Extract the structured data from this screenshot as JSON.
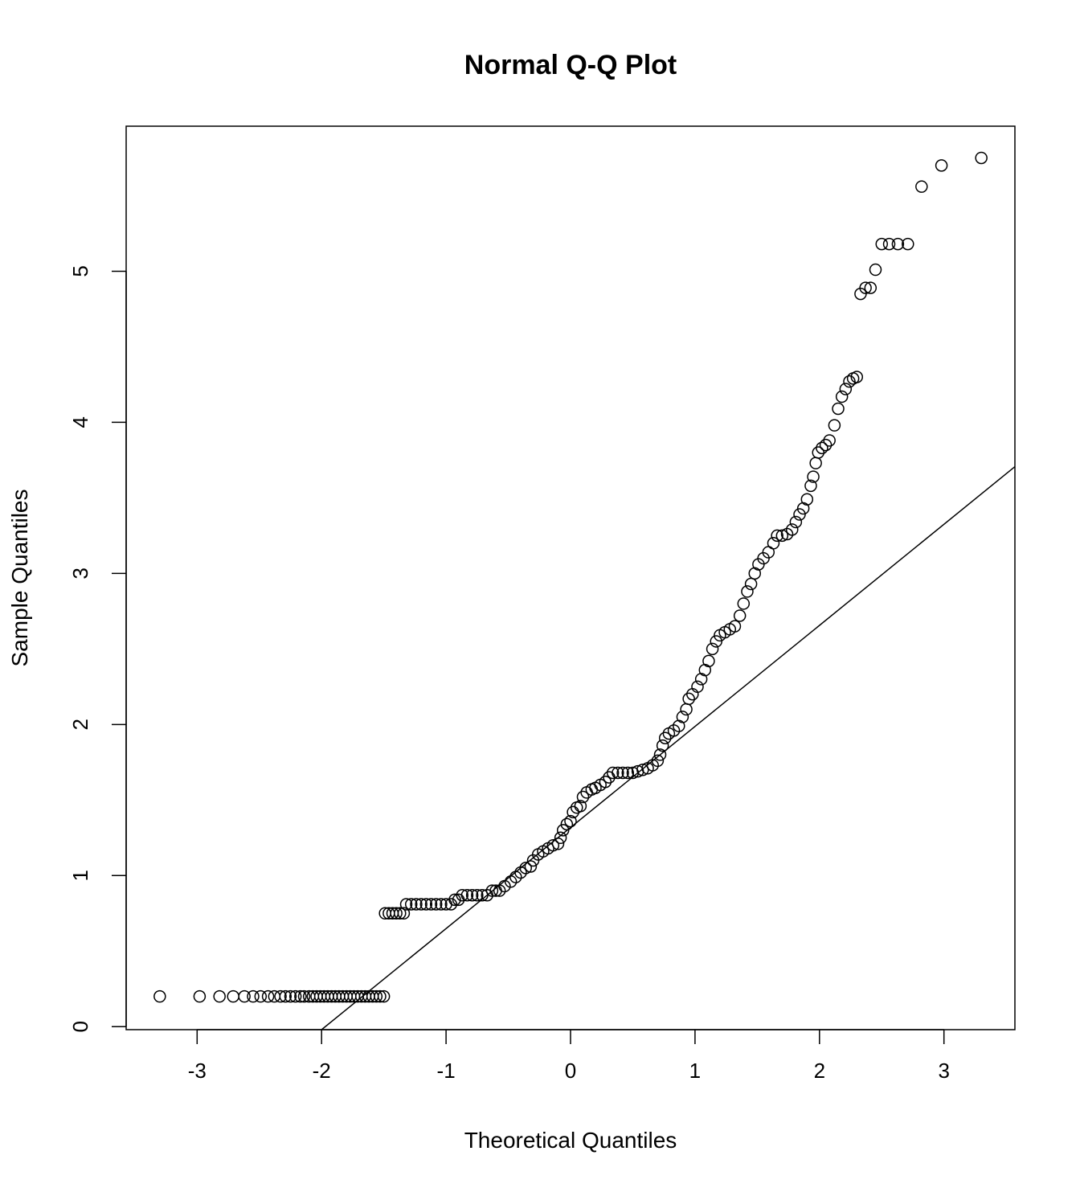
{
  "chart_data": {
    "type": "scatter",
    "title": "Normal Q-Q Plot",
    "xlabel": "Theoretical Quantiles",
    "ylabel": "Sample Quantiles",
    "xlim": [
      -3.57,
      3.57
    ],
    "ylim": [
      -0.02,
      5.96
    ],
    "x_ticks": [
      "-3",
      "-2",
      "-1",
      "0",
      "1",
      "2",
      "3"
    ],
    "y_ticks": [
      "0",
      "1",
      "2",
      "3",
      "4",
      "5"
    ],
    "grid": false,
    "marker": "open-circle",
    "reference_line": {
      "intercept": 1.318,
      "slope": 0.669
    },
    "points": [
      [
        -3.3,
        0.2
      ],
      [
        -2.98,
        0.2
      ],
      [
        -2.82,
        0.2
      ],
      [
        -2.71,
        0.2
      ],
      [
        -2.62,
        0.2
      ],
      [
        -2.55,
        0.2
      ],
      [
        -2.49,
        0.2
      ],
      [
        -2.43,
        0.2
      ],
      [
        -2.38,
        0.2
      ],
      [
        -2.33,
        0.2
      ],
      [
        -2.29,
        0.2
      ],
      [
        -2.25,
        0.2
      ],
      [
        -2.21,
        0.2
      ],
      [
        -2.17,
        0.2
      ],
      [
        -2.14,
        0.2
      ],
      [
        -2.1,
        0.2
      ],
      [
        -2.07,
        0.2
      ],
      [
        -2.04,
        0.2
      ],
      [
        -2.01,
        0.2
      ],
      [
        -1.98,
        0.2
      ],
      [
        -1.95,
        0.2
      ],
      [
        -1.92,
        0.2
      ],
      [
        -1.89,
        0.2
      ],
      [
        -1.86,
        0.2
      ],
      [
        -1.83,
        0.2
      ],
      [
        -1.8,
        0.2
      ],
      [
        -1.77,
        0.2
      ],
      [
        -1.74,
        0.2
      ],
      [
        -1.71,
        0.2
      ],
      [
        -1.68,
        0.2
      ],
      [
        -1.65,
        0.2
      ],
      [
        -1.62,
        0.2
      ],
      [
        -1.59,
        0.2
      ],
      [
        -1.56,
        0.2
      ],
      [
        -1.53,
        0.2
      ],
      [
        -1.5,
        0.2
      ],
      [
        -1.49,
        0.75
      ],
      [
        -1.46,
        0.75
      ],
      [
        -1.43,
        0.75
      ],
      [
        -1.4,
        0.75
      ],
      [
        -1.37,
        0.75
      ],
      [
        -1.34,
        0.75
      ],
      [
        -1.32,
        0.81
      ],
      [
        -1.28,
        0.81
      ],
      [
        -1.24,
        0.81
      ],
      [
        -1.2,
        0.81
      ],
      [
        -1.16,
        0.81
      ],
      [
        -1.12,
        0.81
      ],
      [
        -1.08,
        0.81
      ],
      [
        -1.04,
        0.81
      ],
      [
        -1.0,
        0.81
      ],
      [
        -0.96,
        0.81
      ],
      [
        -0.93,
        0.84
      ],
      [
        -0.9,
        0.84
      ],
      [
        -0.87,
        0.87
      ],
      [
        -0.83,
        0.87
      ],
      [
        -0.79,
        0.87
      ],
      [
        -0.75,
        0.87
      ],
      [
        -0.71,
        0.87
      ],
      [
        -0.67,
        0.87
      ],
      [
        -0.63,
        0.9
      ],
      [
        -0.6,
        0.9
      ],
      [
        -0.57,
        0.9
      ],
      [
        -0.53,
        0.93
      ],
      [
        -0.48,
        0.96
      ],
      [
        -0.44,
        0.99
      ],
      [
        -0.4,
        1.02
      ],
      [
        -0.36,
        1.05
      ],
      [
        -0.32,
        1.06
      ],
      [
        -0.3,
        1.1
      ],
      [
        -0.26,
        1.14
      ],
      [
        -0.22,
        1.16
      ],
      [
        -0.18,
        1.18
      ],
      [
        -0.14,
        1.2
      ],
      [
        -0.1,
        1.21
      ],
      [
        -0.08,
        1.25
      ],
      [
        -0.06,
        1.3
      ],
      [
        -0.03,
        1.34
      ],
      [
        0,
        1.36
      ],
      [
        0.02,
        1.42
      ],
      [
        0.05,
        1.45
      ],
      [
        0.08,
        1.46
      ],
      [
        0.1,
        1.52
      ],
      [
        0.13,
        1.55
      ],
      [
        0.17,
        1.57
      ],
      [
        0.2,
        1.58
      ],
      [
        0.24,
        1.6
      ],
      [
        0.28,
        1.62
      ],
      [
        0.31,
        1.65
      ],
      [
        0.34,
        1.68
      ],
      [
        0.38,
        1.68
      ],
      [
        0.42,
        1.68
      ],
      [
        0.46,
        1.68
      ],
      [
        0.5,
        1.68
      ],
      [
        0.54,
        1.69
      ],
      [
        0.58,
        1.7
      ],
      [
        0.62,
        1.71
      ],
      [
        0.66,
        1.73
      ],
      [
        0.7,
        1.76
      ],
      [
        0.72,
        1.8
      ],
      [
        0.74,
        1.86
      ],
      [
        0.76,
        1.91
      ],
      [
        0.79,
        1.94
      ],
      [
        0.83,
        1.96
      ],
      [
        0.87,
        1.99
      ],
      [
        0.9,
        2.05
      ],
      [
        0.93,
        2.1
      ],
      [
        0.95,
        2.17
      ],
      [
        0.98,
        2.2
      ],
      [
        1.02,
        2.25
      ],
      [
        1.05,
        2.3
      ],
      [
        1.08,
        2.36
      ],
      [
        1.11,
        2.42
      ],
      [
        1.14,
        2.5
      ],
      [
        1.17,
        2.55
      ],
      [
        1.2,
        2.59
      ],
      [
        1.24,
        2.61
      ],
      [
        1.28,
        2.63
      ],
      [
        1.32,
        2.65
      ],
      [
        1.36,
        2.72
      ],
      [
        1.39,
        2.8
      ],
      [
        1.42,
        2.88
      ],
      [
        1.45,
        2.93
      ],
      [
        1.48,
        3.0
      ],
      [
        1.51,
        3.06
      ],
      [
        1.55,
        3.1
      ],
      [
        1.59,
        3.14
      ],
      [
        1.63,
        3.2
      ],
      [
        1.66,
        3.25
      ],
      [
        1.7,
        3.25
      ],
      [
        1.74,
        3.26
      ],
      [
        1.78,
        3.29
      ],
      [
        1.81,
        3.34
      ],
      [
        1.84,
        3.39
      ],
      [
        1.87,
        3.43
      ],
      [
        1.9,
        3.49
      ],
      [
        1.93,
        3.58
      ],
      [
        1.95,
        3.64
      ],
      [
        1.97,
        3.73
      ],
      [
        1.99,
        3.8
      ],
      [
        2.02,
        3.83
      ],
      [
        2.05,
        3.85
      ],
      [
        2.08,
        3.88
      ],
      [
        2.12,
        3.98
      ],
      [
        2.15,
        4.09
      ],
      [
        2.18,
        4.17
      ],
      [
        2.21,
        4.22
      ],
      [
        2.24,
        4.27
      ],
      [
        2.27,
        4.29
      ],
      [
        2.3,
        4.3
      ],
      [
        2.33,
        4.85
      ],
      [
        2.37,
        4.89
      ],
      [
        2.41,
        4.89
      ],
      [
        2.45,
        5.01
      ],
      [
        2.5,
        5.18
      ],
      [
        2.56,
        5.18
      ],
      [
        2.63,
        5.18
      ],
      [
        2.71,
        5.18
      ],
      [
        2.82,
        5.56
      ],
      [
        2.98,
        5.7
      ],
      [
        3.3,
        5.75
      ]
    ]
  }
}
